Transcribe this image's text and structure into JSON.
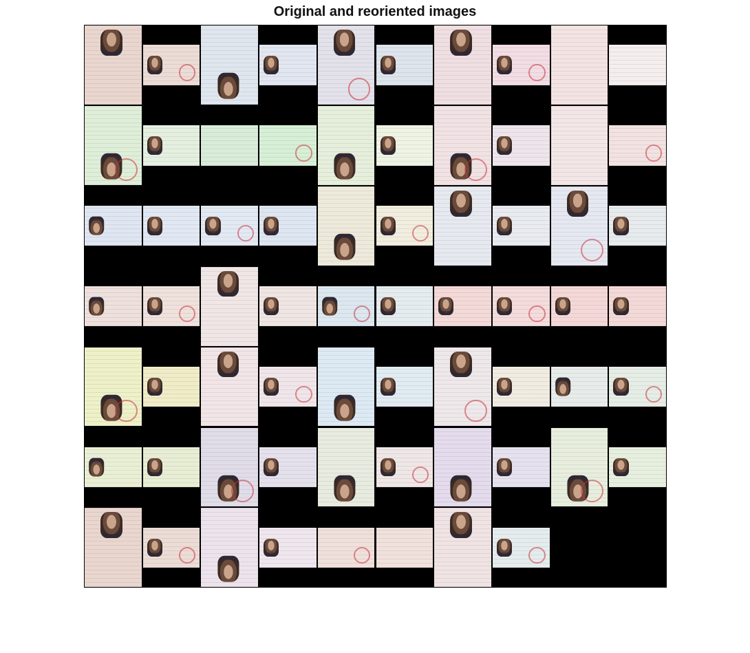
{
  "figure": {
    "title": "Original and reoriented images",
    "background_color": "#000000"
  },
  "cells": [
    {
      "r": 0,
      "c": 0,
      "orient": "portrait",
      "face": "up",
      "tint": "#e9d6cf"
    },
    {
      "r": 0,
      "c": 1,
      "orient": "landscape",
      "face": "up",
      "tint": "#ecdcd6"
    },
    {
      "r": 0,
      "c": 2,
      "orient": "portrait",
      "face": "down",
      "tint": "#dfe6ee"
    },
    {
      "r": 0,
      "c": 3,
      "orient": "landscape",
      "face": "up",
      "tint": "#e2e6f0"
    },
    {
      "r": 0,
      "c": 4,
      "orient": "portrait",
      "face": "up",
      "tint": "#e3e2ea"
    },
    {
      "r": 0,
      "c": 5,
      "orient": "landscape",
      "face": "up",
      "tint": "#dee4ec"
    },
    {
      "r": 0,
      "c": 6,
      "orient": "portrait",
      "face": "up",
      "tint": "#f0dfe2"
    },
    {
      "r": 0,
      "c": 7,
      "orient": "landscape",
      "face": "up",
      "tint": "#f2dde4"
    },
    {
      "r": 0,
      "c": 8,
      "orient": "portrait",
      "face": "none",
      "tint": "#f3e3e3"
    },
    {
      "r": 0,
      "c": 9,
      "orient": "landscape",
      "face": "none",
      "tint": "#f5eeee"
    },
    {
      "r": 1,
      "c": 0,
      "orient": "portrait",
      "face": "down",
      "tint": "#dfeed8"
    },
    {
      "r": 1,
      "c": 1,
      "orient": "landscape",
      "face": "up",
      "tint": "#e4efe0"
    },
    {
      "r": 1,
      "c": 2,
      "orient": "landscape",
      "face": "none",
      "tint": "#d9ecd9"
    },
    {
      "r": 1,
      "c": 3,
      "orient": "landscape",
      "face": "none",
      "tint": "#d7efd6"
    },
    {
      "r": 1,
      "c": 4,
      "orient": "portrait",
      "face": "down",
      "tint": "#e6efdb"
    },
    {
      "r": 1,
      "c": 5,
      "orient": "landscape",
      "face": "up",
      "tint": "#eef3e3"
    },
    {
      "r": 1,
      "c": 6,
      "orient": "portrait",
      "face": "down",
      "tint": "#f1e2e4"
    },
    {
      "r": 1,
      "c": 7,
      "orient": "landscape",
      "face": "up",
      "tint": "#eee4ec"
    },
    {
      "r": 1,
      "c": 8,
      "orient": "portrait",
      "face": "none",
      "tint": "#f3e6e6"
    },
    {
      "r": 1,
      "c": 9,
      "orient": "landscape",
      "face": "none",
      "tint": "#f2e2e2"
    },
    {
      "r": 2,
      "c": 0,
      "orient": "landscape",
      "face": "down",
      "tint": "#dfe6f2"
    },
    {
      "r": 2,
      "c": 1,
      "orient": "landscape",
      "face": "up",
      "tint": "#e2e8f3"
    },
    {
      "r": 2,
      "c": 2,
      "orient": "landscape",
      "face": "up",
      "tint": "#e3e9f3"
    },
    {
      "r": 2,
      "c": 3,
      "orient": "landscape",
      "face": "up",
      "tint": "#dde6f1"
    },
    {
      "r": 2,
      "c": 4,
      "orient": "portrait",
      "face": "down",
      "tint": "#eeeadb"
    },
    {
      "r": 2,
      "c": 5,
      "orient": "landscape",
      "face": "up",
      "tint": "#f1eedf"
    },
    {
      "r": 2,
      "c": 6,
      "orient": "portrait",
      "face": "up",
      "tint": "#e6e9ef"
    },
    {
      "r": 2,
      "c": 7,
      "orient": "landscape",
      "face": "up",
      "tint": "#e8ebf0"
    },
    {
      "r": 2,
      "c": 8,
      "orient": "portrait",
      "face": "up",
      "tint": "#e6e8f1"
    },
    {
      "r": 2,
      "c": 9,
      "orient": "landscape",
      "face": "up",
      "tint": "#e7ebee"
    },
    {
      "r": 3,
      "c": 0,
      "orient": "landscape",
      "face": "down",
      "tint": "#eee0dc"
    },
    {
      "r": 3,
      "c": 1,
      "orient": "landscape",
      "face": "up",
      "tint": "#efe2dd"
    },
    {
      "r": 3,
      "c": 2,
      "orient": "portrait",
      "face": "up",
      "tint": "#f0e6e6"
    },
    {
      "r": 3,
      "c": 3,
      "orient": "landscape",
      "face": "up",
      "tint": "#efe6e3"
    },
    {
      "r": 3,
      "c": 4,
      "orient": "landscape",
      "face": "down",
      "tint": "#dce7ef"
    },
    {
      "r": 3,
      "c": 5,
      "orient": "landscape",
      "face": "up",
      "tint": "#e4ecef"
    },
    {
      "r": 3,
      "c": 6,
      "orient": "landscape",
      "face": "up",
      "tint": "#f3d9d8"
    },
    {
      "r": 3,
      "c": 7,
      "orient": "landscape",
      "face": "up",
      "tint": "#f4dcdc"
    },
    {
      "r": 3,
      "c": 8,
      "orient": "landscape",
      "face": "up",
      "tint": "#f4d8d8"
    },
    {
      "r": 3,
      "c": 9,
      "orient": "landscape",
      "face": "up",
      "tint": "#f3dad8"
    },
    {
      "r": 4,
      "c": 0,
      "orient": "portrait",
      "face": "down",
      "tint": "#eef0c8"
    },
    {
      "r": 4,
      "c": 1,
      "orient": "landscape",
      "face": "up",
      "tint": "#f0ecc8"
    },
    {
      "r": 4,
      "c": 2,
      "orient": "portrait",
      "face": "up",
      "tint": "#f1e5e7"
    },
    {
      "r": 4,
      "c": 3,
      "orient": "landscape",
      "face": "up",
      "tint": "#f0e6ea"
    },
    {
      "r": 4,
      "c": 4,
      "orient": "portrait",
      "face": "down",
      "tint": "#dde9f3"
    },
    {
      "r": 4,
      "c": 5,
      "orient": "landscape",
      "face": "up",
      "tint": "#e1ebf2"
    },
    {
      "r": 4,
      "c": 6,
      "orient": "portrait",
      "face": "up",
      "tint": "#eee8ea"
    },
    {
      "r": 4,
      "c": 7,
      "orient": "landscape",
      "face": "up",
      "tint": "#f1ece2"
    },
    {
      "r": 4,
      "c": 8,
      "orient": "landscape",
      "face": "down",
      "tint": "#e7ecea"
    },
    {
      "r": 4,
      "c": 9,
      "orient": "landscape",
      "face": "up",
      "tint": "#e6ede6"
    },
    {
      "r": 5,
      "c": 0,
      "orient": "landscape",
      "face": "down",
      "tint": "#e9efd4"
    },
    {
      "r": 5,
      "c": 1,
      "orient": "landscape",
      "face": "up",
      "tint": "#e7eed4"
    },
    {
      "r": 5,
      "c": 2,
      "orient": "portrait",
      "face": "down",
      "tint": "#e0dde9"
    },
    {
      "r": 5,
      "c": 3,
      "orient": "landscape",
      "face": "up",
      "tint": "#e5e1ec"
    },
    {
      "r": 5,
      "c": 4,
      "orient": "portrait",
      "face": "down",
      "tint": "#e8ece0"
    },
    {
      "r": 5,
      "c": 5,
      "orient": "landscape",
      "face": "up",
      "tint": "#efe6e6"
    },
    {
      "r": 5,
      "c": 6,
      "orient": "portrait",
      "face": "down",
      "tint": "#e4dcec"
    },
    {
      "r": 5,
      "c": 7,
      "orient": "landscape",
      "face": "up",
      "tint": "#e5e1ee"
    },
    {
      "r": 5,
      "c": 8,
      "orient": "portrait",
      "face": "down",
      "tint": "#e8eedd"
    },
    {
      "r": 5,
      "c": 9,
      "orient": "landscape",
      "face": "up",
      "tint": "#e7efdf"
    },
    {
      "r": 6,
      "c": 0,
      "orient": "portrait",
      "face": "up",
      "tint": "#e9d6cf"
    },
    {
      "r": 6,
      "c": 1,
      "orient": "landscape",
      "face": "up",
      "tint": "#ecdcd6"
    },
    {
      "r": 6,
      "c": 2,
      "orient": "portrait",
      "face": "down",
      "tint": "#ece3ec"
    },
    {
      "r": 6,
      "c": 3,
      "orient": "landscape",
      "face": "up",
      "tint": "#efe6ee"
    },
    {
      "r": 6,
      "c": 4,
      "orient": "landscape",
      "face": "none",
      "tint": "#f0e0dc"
    },
    {
      "r": 6,
      "c": 5,
      "orient": "landscape",
      "face": "none",
      "tint": "#f1e1dc"
    },
    {
      "r": 6,
      "c": 6,
      "orient": "portrait",
      "face": "up",
      "tint": "#f0e3e3"
    },
    {
      "r": 6,
      "c": 7,
      "orient": "landscape",
      "face": "up",
      "tint": "#e5ecee"
    }
  ]
}
